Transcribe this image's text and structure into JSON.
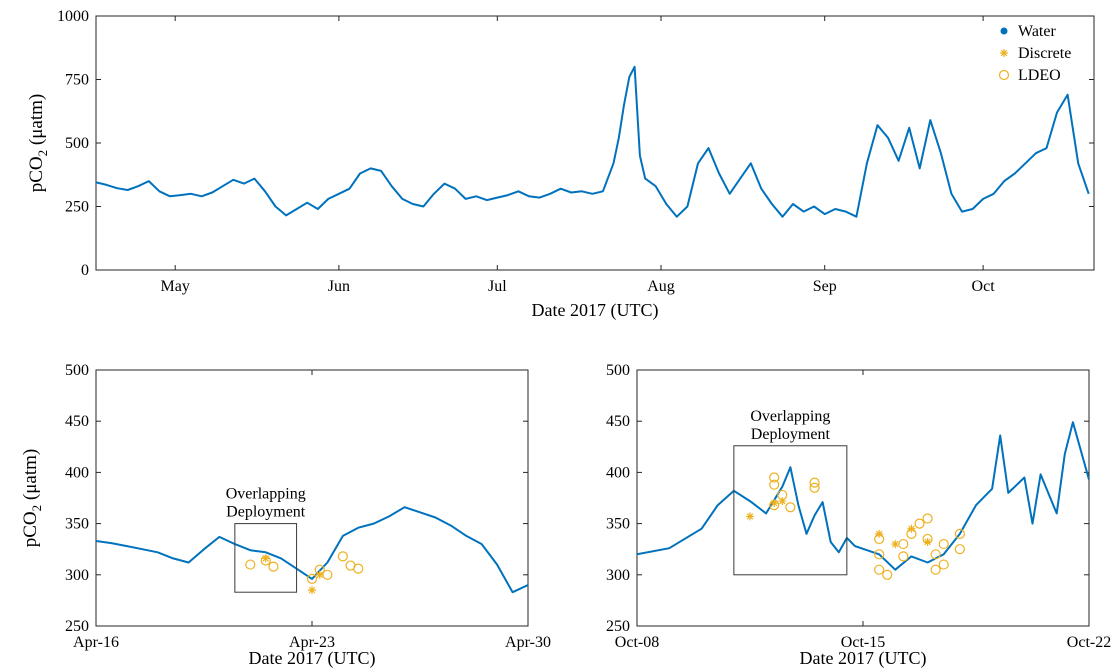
{
  "colors": {
    "water": "#0072BD",
    "discrete": "#EDB120",
    "ldeo": "#EDB120",
    "axis": "#262626",
    "box": "#3a3a3a"
  },
  "chart_data": [
    {
      "type": "scatter",
      "name": "full-season",
      "xlabel": "Date 2017 (UTC)",
      "ylabel_main": "pCO",
      "ylabel_sub": "2",
      "ylabel_unit": " (μatm)",
      "xlim": [
        "2017-04-16",
        "2017-10-22"
      ],
      "ylim": [
        0,
        1000
      ],
      "x_ticks": [
        {
          "date": "2017-05-01",
          "label": "May"
        },
        {
          "date": "2017-06-01",
          "label": "Jun"
        },
        {
          "date": "2017-07-01",
          "label": "Jul"
        },
        {
          "date": "2017-08-01",
          "label": "Aug"
        },
        {
          "date": "2017-09-01",
          "label": "Sep"
        },
        {
          "date": "2017-10-01",
          "label": "Oct"
        }
      ],
      "y_ticks": [
        0,
        250,
        500,
        750,
        1000
      ],
      "grid": false,
      "legend": {
        "position": "top-right",
        "entries": [
          {
            "label": "Water",
            "marker": "dot"
          },
          {
            "label": "Discrete",
            "marker": "star"
          },
          {
            "label": "LDEO",
            "marker": "circle"
          }
        ]
      },
      "series": [
        {
          "name": "Water",
          "style": "dense-line",
          "points": [
            [
              "2017-04-16",
              345
            ],
            [
              "2017-04-18",
              335
            ],
            [
              "2017-04-20",
              322
            ],
            [
              "2017-04-22",
              315
            ],
            [
              "2017-04-24",
              330
            ],
            [
              "2017-04-26",
              350
            ],
            [
              "2017-04-28",
              310
            ],
            [
              "2017-04-30",
              290
            ],
            [
              "2017-05-02",
              295
            ],
            [
              "2017-05-04",
              300
            ],
            [
              "2017-05-06",
              290
            ],
            [
              "2017-05-08",
              305
            ],
            [
              "2017-05-10",
              330
            ],
            [
              "2017-05-12",
              355
            ],
            [
              "2017-05-14",
              340
            ],
            [
              "2017-05-16",
              360
            ],
            [
              "2017-05-18",
              310
            ],
            [
              "2017-05-20",
              250
            ],
            [
              "2017-05-22",
              215
            ],
            [
              "2017-05-24",
              240
            ],
            [
              "2017-05-26",
              265
            ],
            [
              "2017-05-28",
              240
            ],
            [
              "2017-05-30",
              280
            ],
            [
              "2017-06-01",
              300
            ],
            [
              "2017-06-03",
              320
            ],
            [
              "2017-06-05",
              380
            ],
            [
              "2017-06-07",
              400
            ],
            [
              "2017-06-09",
              390
            ],
            [
              "2017-06-11",
              330
            ],
            [
              "2017-06-13",
              280
            ],
            [
              "2017-06-15",
              260
            ],
            [
              "2017-06-17",
              250
            ],
            [
              "2017-06-19",
              300
            ],
            [
              "2017-06-21",
              340
            ],
            [
              "2017-06-23",
              320
            ],
            [
              "2017-06-25",
              280
            ],
            [
              "2017-06-27",
              290
            ],
            [
              "2017-06-29",
              275
            ],
            [
              "2017-07-01",
              285
            ],
            [
              "2017-07-03",
              295
            ],
            [
              "2017-07-05",
              310
            ],
            [
              "2017-07-07",
              290
            ],
            [
              "2017-07-09",
              285
            ],
            [
              "2017-07-11",
              300
            ],
            [
              "2017-07-13",
              320
            ],
            [
              "2017-07-15",
              305
            ],
            [
              "2017-07-17",
              310
            ],
            [
              "2017-07-19",
              300
            ],
            [
              "2017-07-21",
              310
            ],
            [
              "2017-07-23",
              420
            ],
            [
              "2017-07-24",
              520
            ],
            [
              "2017-07-25",
              650
            ],
            [
              "2017-07-26",
              760
            ],
            [
              "2017-07-27",
              800
            ],
            [
              "2017-07-28",
              450
            ],
            [
              "2017-07-29",
              360
            ],
            [
              "2017-07-31",
              330
            ],
            [
              "2017-08-02",
              260
            ],
            [
              "2017-08-04",
              210
            ],
            [
              "2017-08-06",
              250
            ],
            [
              "2017-08-08",
              420
            ],
            [
              "2017-08-10",
              480
            ],
            [
              "2017-08-12",
              380
            ],
            [
              "2017-08-14",
              300
            ],
            [
              "2017-08-16",
              360
            ],
            [
              "2017-08-18",
              420
            ],
            [
              "2017-08-20",
              320
            ],
            [
              "2017-08-22",
              260
            ],
            [
              "2017-08-24",
              210
            ],
            [
              "2017-08-26",
              260
            ],
            [
              "2017-08-28",
              230
            ],
            [
              "2017-08-30",
              250
            ],
            [
              "2017-09-01",
              220
            ],
            [
              "2017-09-03",
              240
            ],
            [
              "2017-09-05",
              230
            ],
            [
              "2017-09-07",
              210
            ],
            [
              "2017-09-09",
              420
            ],
            [
              "2017-09-11",
              570
            ],
            [
              "2017-09-13",
              520
            ],
            [
              "2017-09-15",
              430
            ],
            [
              "2017-09-17",
              560
            ],
            [
              "2017-09-19",
              400
            ],
            [
              "2017-09-21",
              590
            ],
            [
              "2017-09-23",
              460
            ],
            [
              "2017-09-25",
              300
            ],
            [
              "2017-09-27",
              230
            ],
            [
              "2017-09-29",
              240
            ],
            [
              "2017-10-01",
              280
            ],
            [
              "2017-10-03",
              300
            ],
            [
              "2017-10-05",
              350
            ],
            [
              "2017-10-07",
              380
            ],
            [
              "2017-10-09",
              420
            ],
            [
              "2017-10-11",
              460
            ],
            [
              "2017-10-13",
              480
            ],
            [
              "2017-10-15",
              620
            ],
            [
              "2017-10-17",
              690
            ],
            [
              "2017-10-19",
              420
            ],
            [
              "2017-10-21",
              300
            ]
          ]
        }
      ]
    },
    {
      "type": "scatter",
      "name": "april-zoom",
      "xlabel": "Date 2017 (UTC)",
      "ylabel_main": "pCO",
      "ylabel_sub": "2",
      "ylabel_unit": " (μatm)",
      "xlim": [
        "2017-04-16",
        "2017-04-30"
      ],
      "ylim": [
        250,
        500
      ],
      "x_ticks": [
        {
          "date": "2017-04-16",
          "label": "Apr-16"
        },
        {
          "date": "2017-04-23",
          "label": "Apr-23"
        },
        {
          "date": "2017-04-30",
          "label": "Apr-30"
        }
      ],
      "y_ticks": [
        250,
        300,
        350,
        400,
        450,
        500
      ],
      "grid": false,
      "annotation": {
        "lines": [
          "Overlapping",
          "Deployment"
        ],
        "box_x": [
          "2017-04-20T12:00",
          "2017-04-22T12:00"
        ],
        "box_y": [
          283,
          350
        ]
      },
      "series": [
        {
          "name": "Water",
          "style": "dense-line",
          "points": [
            [
              "2017-04-16T00:00",
              333
            ],
            [
              "2017-04-16T12:00",
              331
            ],
            [
              "2017-04-17T00:00",
              328
            ],
            [
              "2017-04-17T12:00",
              325
            ],
            [
              "2017-04-18T00:00",
              322
            ],
            [
              "2017-04-18T12:00",
              316
            ],
            [
              "2017-04-19T00:00",
              312
            ],
            [
              "2017-04-19T12:00",
              325
            ],
            [
              "2017-04-20T00:00",
              337
            ],
            [
              "2017-04-20T12:00",
              330
            ],
            [
              "2017-04-21T00:00",
              324
            ],
            [
              "2017-04-21T12:00",
              322
            ],
            [
              "2017-04-22T00:00",
              316
            ],
            [
              "2017-04-22T12:00",
              306
            ],
            [
              "2017-04-23T00:00",
              296
            ],
            [
              "2017-04-23T12:00",
              312
            ],
            [
              "2017-04-24T00:00",
              338
            ],
            [
              "2017-04-24T12:00",
              346
            ],
            [
              "2017-04-25T00:00",
              350
            ],
            [
              "2017-04-25T12:00",
              357
            ],
            [
              "2017-04-26T00:00",
              366
            ],
            [
              "2017-04-26T12:00",
              361
            ],
            [
              "2017-04-27T00:00",
              356
            ],
            [
              "2017-04-27T12:00",
              348
            ],
            [
              "2017-04-28T00:00",
              338
            ],
            [
              "2017-04-28T12:00",
              330
            ],
            [
              "2017-04-29T00:00",
              310
            ],
            [
              "2017-04-29T12:00",
              283
            ],
            [
              "2017-04-30T00:00",
              290
            ]
          ]
        },
        {
          "name": "Discrete",
          "points": [
            [
              "2017-04-21T12:00",
              316
            ],
            [
              "2017-04-23T00:00",
              285
            ],
            [
              "2017-04-23T06:00",
              300
            ]
          ]
        },
        {
          "name": "LDEO",
          "points": [
            [
              "2017-04-21T00:00",
              310
            ],
            [
              "2017-04-21T12:00",
              314
            ],
            [
              "2017-04-21T18:00",
              308
            ],
            [
              "2017-04-23T00:00",
              296
            ],
            [
              "2017-04-23T06:00",
              305
            ],
            [
              "2017-04-23T12:00",
              300
            ],
            [
              "2017-04-24T00:00",
              318
            ],
            [
              "2017-04-24T06:00",
              309
            ],
            [
              "2017-04-24T12:00",
              306
            ]
          ]
        }
      ]
    },
    {
      "type": "scatter",
      "name": "october-zoom",
      "xlabel": "Date 2017 (UTC)",
      "xlim": [
        "2017-10-08",
        "2017-10-22"
      ],
      "ylim": [
        250,
        500
      ],
      "x_ticks": [
        {
          "date": "2017-10-08",
          "label": "Oct-08"
        },
        {
          "date": "2017-10-15",
          "label": "Oct-15"
        },
        {
          "date": "2017-10-22",
          "label": "Oct-22"
        }
      ],
      "y_ticks": [
        250,
        300,
        350,
        400,
        450,
        500
      ],
      "grid": false,
      "annotation": {
        "lines": [
          "Overlapping",
          "Deployment"
        ],
        "box_x": [
          "2017-10-11T00:00",
          "2017-10-14T12:00"
        ],
        "box_y": [
          300,
          426
        ]
      },
      "series": [
        {
          "name": "Water",
          "style": "dense-line",
          "points": [
            [
              "2017-10-08T00:00",
              320
            ],
            [
              "2017-10-09T00:00",
              326
            ],
            [
              "2017-10-10T00:00",
              345
            ],
            [
              "2017-10-10T12:00",
              368
            ],
            [
              "2017-10-11T00:00",
              382
            ],
            [
              "2017-10-11T12:00",
              372
            ],
            [
              "2017-10-12T00:00",
              360
            ],
            [
              "2017-10-12T12:00",
              386
            ],
            [
              "2017-10-12T18:00",
              405
            ],
            [
              "2017-10-13T00:00",
              368
            ],
            [
              "2017-10-13T06:00",
              340
            ],
            [
              "2017-10-13T12:00",
              358
            ],
            [
              "2017-10-13T18:00",
              371
            ],
            [
              "2017-10-14T00:00",
              332
            ],
            [
              "2017-10-14T06:00",
              322
            ],
            [
              "2017-10-14T12:00",
              336
            ],
            [
              "2017-10-14T18:00",
              328
            ],
            [
              "2017-10-15T12:00",
              320
            ],
            [
              "2017-10-16T00:00",
              305
            ],
            [
              "2017-10-16T12:00",
              318
            ],
            [
              "2017-10-17T00:00",
              312
            ],
            [
              "2017-10-17T12:00",
              320
            ],
            [
              "2017-10-18T00:00",
              340
            ],
            [
              "2017-10-18T12:00",
              368
            ],
            [
              "2017-10-19T00:00",
              384
            ],
            [
              "2017-10-19T06:00",
              436
            ],
            [
              "2017-10-19T12:00",
              380
            ],
            [
              "2017-10-20T00:00",
              395
            ],
            [
              "2017-10-20T06:00",
              350
            ],
            [
              "2017-10-20T12:00",
              398
            ],
            [
              "2017-10-21T00:00",
              360
            ],
            [
              "2017-10-21T06:00",
              418
            ],
            [
              "2017-10-21T12:00",
              449
            ],
            [
              "2017-10-22T00:00",
              393
            ]
          ]
        },
        {
          "name": "Discrete",
          "points": [
            [
              "2017-10-11T12:00",
              357
            ],
            [
              "2017-10-12T06:00",
              370
            ],
            [
              "2017-10-12T12:00",
              372
            ],
            [
              "2017-10-15T12:00",
              340
            ],
            [
              "2017-10-16T00:00",
              330
            ],
            [
              "2017-10-16T12:00",
              345
            ],
            [
              "2017-10-17T00:00",
              332
            ]
          ]
        },
        {
          "name": "LDEO",
          "points": [
            [
              "2017-10-12T06:00",
              395
            ],
            [
              "2017-10-12T06:00",
              388
            ],
            [
              "2017-10-12T06:00",
              368
            ],
            [
              "2017-10-12T12:00",
              378
            ],
            [
              "2017-10-12T18:00",
              366
            ],
            [
              "2017-10-13T12:00",
              390
            ],
            [
              "2017-10-13T12:00",
              385
            ],
            [
              "2017-10-15T12:00",
              335
            ],
            [
              "2017-10-15T12:00",
              320
            ],
            [
              "2017-10-15T12:00",
              305
            ],
            [
              "2017-10-15T18:00",
              300
            ],
            [
              "2017-10-16T06:00",
              330
            ],
            [
              "2017-10-16T06:00",
              318
            ],
            [
              "2017-10-16T12:00",
              340
            ],
            [
              "2017-10-16T18:00",
              350
            ],
            [
              "2017-10-17T00:00",
              355
            ],
            [
              "2017-10-17T00:00",
              335
            ],
            [
              "2017-10-17T06:00",
              320
            ],
            [
              "2017-10-17T06:00",
              305
            ],
            [
              "2017-10-17T12:00",
              330
            ],
            [
              "2017-10-17T12:00",
              310
            ],
            [
              "2017-10-18T00:00",
              340
            ],
            [
              "2017-10-18T00:00",
              325
            ]
          ]
        }
      ]
    }
  ]
}
